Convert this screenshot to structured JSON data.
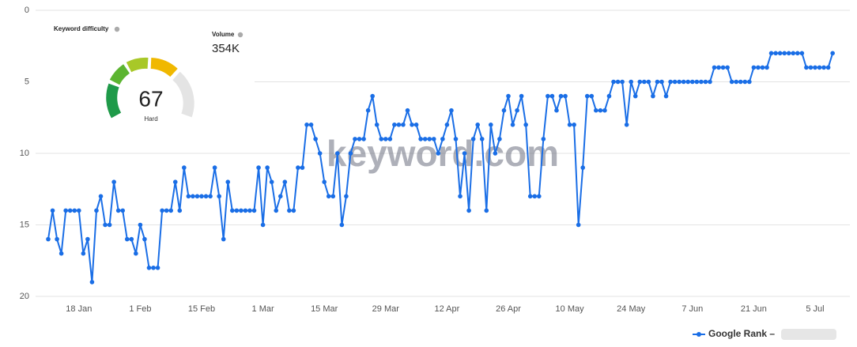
{
  "chart_data": {
    "type": "line",
    "categories": [
      null,
      null,
      null,
      null,
      null,
      null,
      null,
      "18 Jan",
      null,
      null,
      null,
      null,
      null,
      null,
      null,
      null,
      null,
      null,
      null,
      null,
      null,
      "1 Feb",
      null,
      null,
      null,
      null,
      null,
      null,
      null,
      null,
      null,
      null,
      null,
      null,
      null,
      "15 Feb",
      null,
      null,
      null,
      null,
      null,
      null,
      null,
      null,
      null,
      null,
      null,
      null,
      null,
      "1 Mar",
      null,
      null,
      null,
      null,
      null,
      null,
      null,
      null,
      null,
      null,
      null,
      null,
      null,
      "15 Mar",
      null,
      null,
      null,
      null,
      null,
      null,
      null,
      null,
      null,
      null,
      null,
      null,
      null,
      "29 Mar",
      null,
      null,
      null,
      null,
      null,
      null,
      null,
      null,
      null,
      null,
      null,
      null,
      null,
      "12 Apr",
      null,
      null,
      null,
      null,
      null,
      null,
      null,
      null,
      null,
      null,
      null,
      null,
      null,
      "26 Apr",
      null,
      null,
      null,
      null,
      null,
      null,
      null,
      null,
      null,
      null,
      null,
      null,
      null,
      "10 May",
      null,
      null,
      null,
      null,
      null,
      null,
      null,
      null,
      null,
      null,
      null,
      null,
      null,
      "24 May",
      null,
      null,
      null,
      null,
      null,
      null,
      null,
      null,
      null,
      null,
      null,
      null,
      null,
      "7 Jun",
      null,
      null,
      null,
      null,
      null,
      null,
      null,
      null,
      null,
      null,
      null,
      null,
      null,
      "21 Jun",
      null,
      null,
      null,
      null,
      null,
      null,
      null,
      null,
      null,
      null,
      null,
      null,
      null,
      "5 Jul",
      null,
      null,
      null,
      null
    ],
    "series": [
      {
        "name": "Google Rank –",
        "color": "#1a6ee6",
        "values": [
          16,
          14,
          16,
          17,
          14,
          14,
          14,
          14,
          17,
          16,
          19,
          14,
          13,
          15,
          15,
          12,
          14,
          14,
          16,
          16,
          17,
          15,
          16,
          18,
          18,
          18,
          14,
          14,
          14,
          12,
          14,
          11,
          13,
          13,
          13,
          13,
          13,
          13,
          11,
          13,
          16,
          12,
          14,
          14,
          14,
          14,
          14,
          14,
          11,
          15,
          11,
          12,
          14,
          13,
          12,
          14,
          14,
          11,
          11,
          8,
          8,
          9,
          10,
          12,
          13,
          13,
          10,
          15,
          13,
          10,
          9,
          9,
          9,
          7,
          6,
          8,
          9,
          9,
          9,
          8,
          8,
          8,
          7,
          8,
          8,
          9,
          9,
          9,
          9,
          10,
          9,
          8,
          7,
          9,
          13,
          10,
          14,
          9,
          8,
          9,
          14,
          8,
          10,
          9,
          7,
          6,
          8,
          7,
          6,
          8,
          13,
          13,
          13,
          9,
          6,
          6,
          7,
          6,
          6,
          8,
          8,
          15,
          11,
          6,
          6,
          7,
          7,
          7,
          6,
          5,
          5,
          5,
          8,
          5,
          6,
          5,
          5,
          5,
          6,
          5,
          5,
          6,
          5,
          5,
          5,
          5,
          5,
          5,
          5,
          5,
          5,
          5,
          4,
          4,
          4,
          4,
          5,
          5,
          5,
          5,
          5,
          4,
          4,
          4,
          4,
          3,
          3,
          3,
          3,
          3,
          3,
          3,
          3,
          4,
          4,
          4,
          4,
          4,
          4,
          3
        ]
      }
    ],
    "ylim": [
      20,
      0
    ],
    "yticks": [
      0,
      5,
      10,
      15,
      20
    ],
    "grid": true,
    "watermark": "keyword.com"
  },
  "widget": {
    "difficulty_label": "Keyword difficulty",
    "difficulty_value": "67",
    "difficulty_rating": "Hard",
    "volume_label": "Volume",
    "volume_value": "354K"
  }
}
